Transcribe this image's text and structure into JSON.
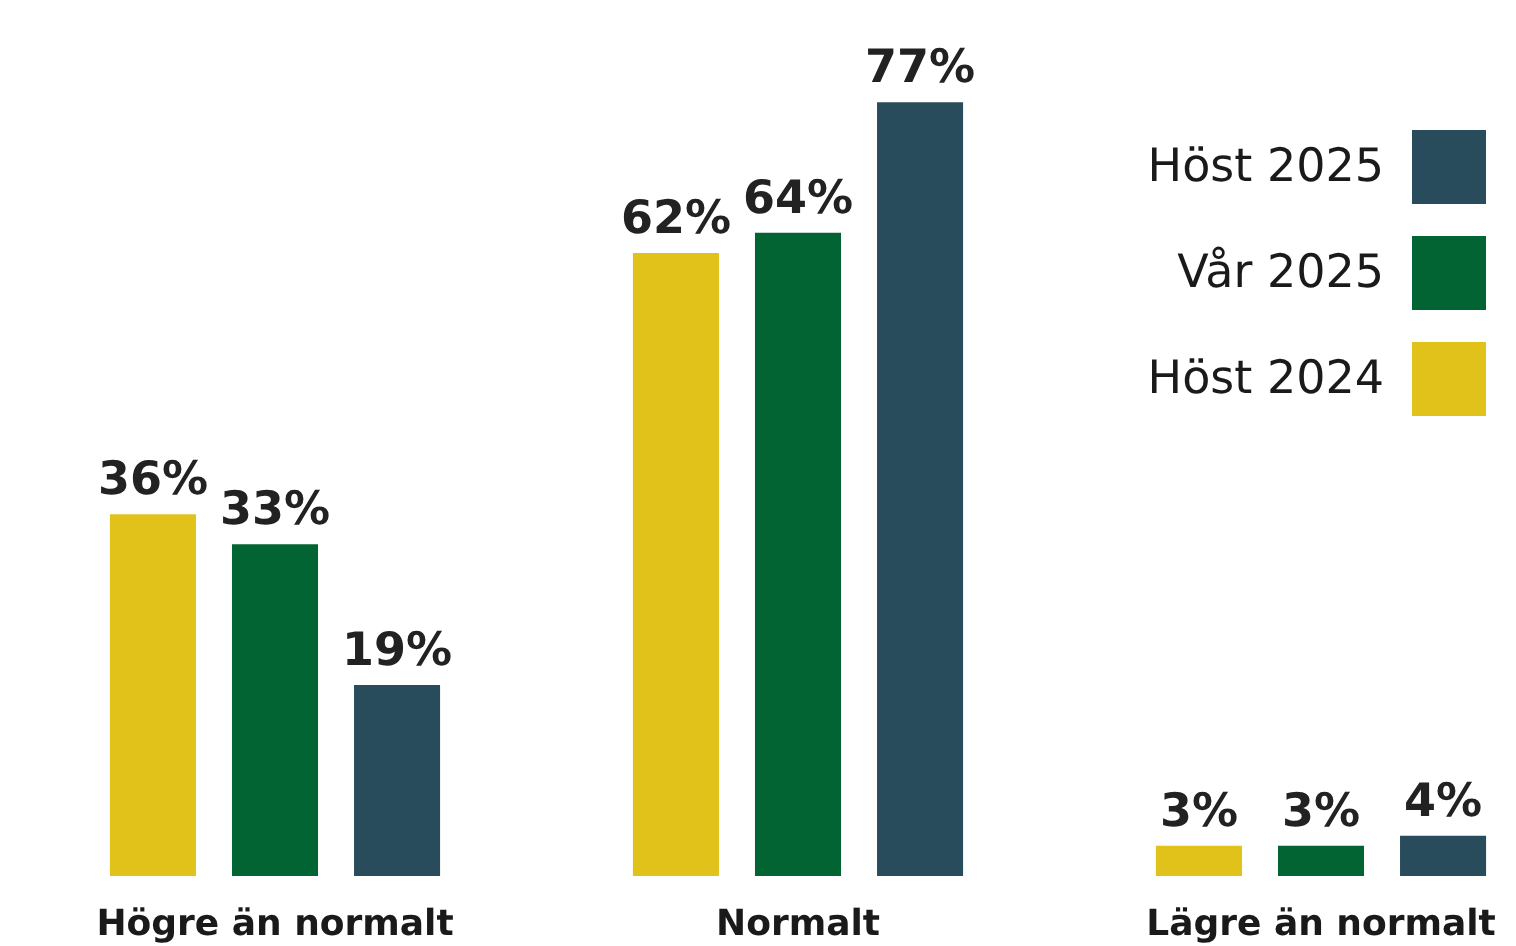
{
  "chart_data": {
    "type": "bar",
    "categories": [
      "Högre än normalt",
      "Normalt",
      "Lägre än normalt"
    ],
    "series": [
      {
        "name": "Höst 2024",
        "color": "#e1c21b",
        "values": [
          36,
          62,
          3
        ],
        "value_labels": [
          "36%",
          "62%",
          "3%"
        ]
      },
      {
        "name": "Vår 2025",
        "color": "#036433",
        "values": [
          33,
          64,
          3
        ],
        "value_labels": [
          "33%",
          "64%",
          "3%"
        ]
      },
      {
        "name": "Höst 2025",
        "color": "#284c5c",
        "values": [
          19,
          77,
          4
        ],
        "value_labels": [
          "19%",
          "77%",
          "4%"
        ]
      }
    ],
    "legend": "top right",
    "tick_labels": "x"
  }
}
